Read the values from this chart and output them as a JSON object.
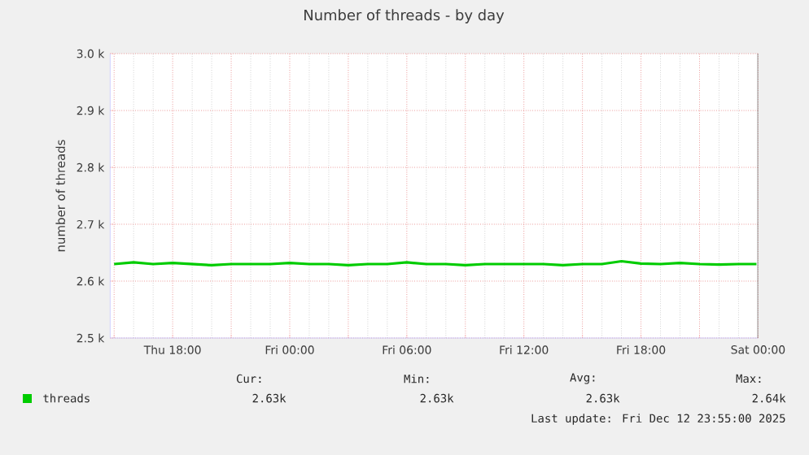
{
  "chart_data": {
    "type": "line",
    "title": "Number of threads - by day",
    "ylabel": "number of threads",
    "x": [
      "2025-12-11T15:00",
      "2025-12-11T16:00",
      "2025-12-11T17:00",
      "2025-12-11T18:00",
      "2025-12-11T19:00",
      "2025-12-11T20:00",
      "2025-12-11T21:00",
      "2025-12-11T22:00",
      "2025-12-11T23:00",
      "2025-12-12T00:00",
      "2025-12-12T01:00",
      "2025-12-12T02:00",
      "2025-12-12T03:00",
      "2025-12-12T04:00",
      "2025-12-12T05:00",
      "2025-12-12T06:00",
      "2025-12-12T07:00",
      "2025-12-12T08:00",
      "2025-12-12T09:00",
      "2025-12-12T10:00",
      "2025-12-12T11:00",
      "2025-12-12T12:00",
      "2025-12-12T13:00",
      "2025-12-12T14:00",
      "2025-12-12T15:00",
      "2025-12-12T16:00",
      "2025-12-12T17:00",
      "2025-12-12T18:00",
      "2025-12-12T19:00",
      "2025-12-12T20:00",
      "2025-12-12T21:00",
      "2025-12-12T22:00",
      "2025-12-12T23:00",
      "2025-12-12T23:55"
    ],
    "series": [
      {
        "name": "threads",
        "color": "#00cc00",
        "values": [
          2630,
          2633,
          2630,
          2632,
          2630,
          2628,
          2630,
          2630,
          2630,
          2632,
          2630,
          2630,
          2628,
          2630,
          2630,
          2633,
          2630,
          2630,
          2628,
          2630,
          2630,
          2630,
          2630,
          2628,
          2630,
          2630,
          2635,
          2631,
          2630,
          2632,
          2630,
          2629,
          2630,
          2630
        ]
      }
    ],
    "xlim": [
      "2025-12-11T14:48",
      "2025-12-13T00:00"
    ],
    "xticks": [
      {
        "value": "2025-12-11T15:00",
        "label": null
      },
      {
        "value": "2025-12-11T18:00",
        "label": "Thu 18:00"
      },
      {
        "value": "2025-12-11T21:00",
        "label": null
      },
      {
        "value": "2025-12-12T00:00",
        "label": "Fri 00:00"
      },
      {
        "value": "2025-12-12T03:00",
        "label": null
      },
      {
        "value": "2025-12-12T06:00",
        "label": "Fri 06:00"
      },
      {
        "value": "2025-12-12T09:00",
        "label": null
      },
      {
        "value": "2025-12-12T12:00",
        "label": "Fri 12:00"
      },
      {
        "value": "2025-12-12T15:00",
        "label": null
      },
      {
        "value": "2025-12-12T18:00",
        "label": "Fri 18:00"
      },
      {
        "value": "2025-12-12T21:00",
        "label": null
      },
      {
        "value": "2025-12-13T00:00",
        "label": "Sat 00:00"
      }
    ],
    "ylim": [
      2500,
      3000
    ],
    "yticks": [
      {
        "value": 2500,
        "label": "2.5 k"
      },
      {
        "value": 2600,
        "label": "2.6 k"
      },
      {
        "value": 2700,
        "label": "2.7 k"
      },
      {
        "value": 2800,
        "label": "2.8 k"
      },
      {
        "value": 2900,
        "label": "2.9 k"
      },
      {
        "value": 3000,
        "label": "3.0 k"
      }
    ],
    "grid": true,
    "legend": "bottom",
    "marker": "none",
    "line_style": "solid",
    "annotations": [
      "Cur:",
      "Min:",
      "Avg:",
      "Max:",
      "2.63k",
      "2.63k",
      "2.63k",
      "2.64k",
      "Last update:  Fri Dec 12 23:55:00 2025"
    ]
  }
}
